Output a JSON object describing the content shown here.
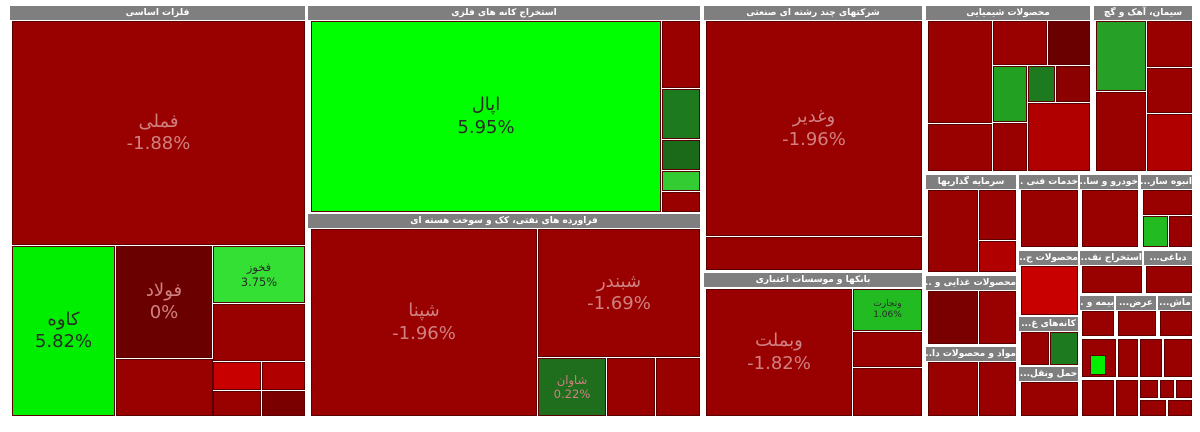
{
  "sectors": [
    {
      "title": "فلزات اساسی",
      "tiles": [
        {
          "label": "فملی",
          "change": "-1.88%"
        },
        {
          "label": "کاوه",
          "change": "5.82%"
        },
        {
          "label": "فولاد",
          "change": "0%"
        },
        {
          "label": "فخوز",
          "change": "3.75%"
        }
      ]
    },
    {
      "title": "استخراج کانه های فلزی",
      "tiles": [
        {
          "label": "اپال",
          "change": "5.95%"
        }
      ]
    },
    {
      "title": "فراورده های نفتی، کک و سوخت هسته ای",
      "tiles": [
        {
          "label": "شپنا",
          "change": "-1.96%"
        },
        {
          "label": "شبندر",
          "change": "-1.69%"
        },
        {
          "label": "شاوان",
          "change": "0.22%"
        }
      ]
    },
    {
      "title": "شرکتهای چند رشته ای صنعتی",
      "tiles": [
        {
          "label": "وغدیر",
          "change": "-1.96%"
        }
      ]
    },
    {
      "title": "بانکها و موسسات اعتباری",
      "tiles": [
        {
          "label": "وبملت",
          "change": "-1.82%"
        },
        {
          "label": "وتجارت",
          "change": "1.06%"
        }
      ]
    },
    {
      "title": "محصولات شیمیایی",
      "tiles": []
    },
    {
      "title": "سیمان، آهک و گچ",
      "tiles": []
    },
    {
      "title": "سرمایه گذاریها",
      "tiles": []
    },
    {
      "title": "خدمات فنی ...",
      "tiles": []
    },
    {
      "title": "خودرو و سا...",
      "tiles": []
    },
    {
      "title": "انبوه ساز...",
      "tiles": []
    },
    {
      "title": "محصولات غذایی و ...",
      "tiles": []
    },
    {
      "title": "محصولات ج...",
      "tiles": []
    },
    {
      "title": "استخراج نف...",
      "tiles": []
    },
    {
      "title": "دباغی...",
      "tiles": []
    },
    {
      "title": "مواد و محصولات دا...",
      "tiles": []
    },
    {
      "title": "کانه‌های غ...",
      "tiles": []
    },
    {
      "title": "حمل ونقل...",
      "tiles": []
    },
    {
      "title": "بیمه و ...",
      "tiles": []
    },
    {
      "title": "عرض...",
      "tiles": []
    },
    {
      "title": "ماش...",
      "tiles": []
    }
  ]
}
